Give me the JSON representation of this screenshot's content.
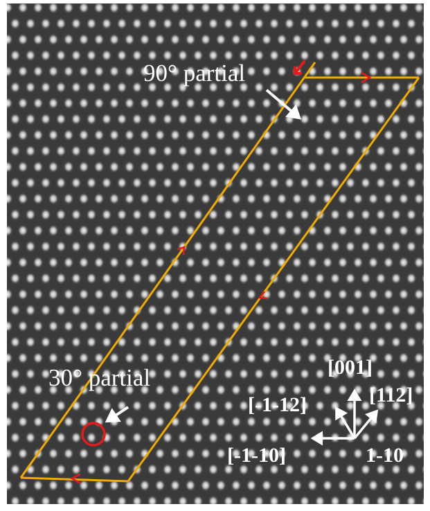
{
  "annotations": {
    "partial_90": "90° partial",
    "partial_30": "30° partial"
  },
  "directions": {
    "d001": "[001]",
    "dm1m12": "[-1-12]",
    "d112": "[112]",
    "dm1m10": "[-1-10]",
    "d1m10": "1-10"
  }
}
